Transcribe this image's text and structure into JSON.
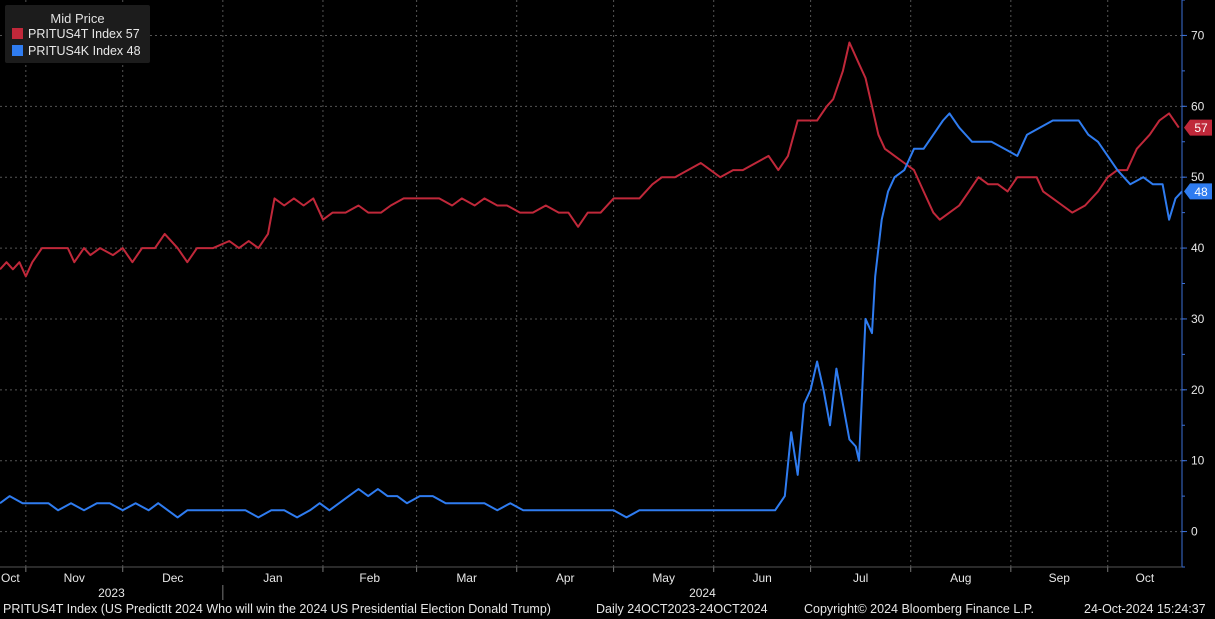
{
  "legend": {
    "title": "Mid Price",
    "items": [
      {
        "label": "PRITUS4T Index",
        "value": "57",
        "color": "#c0283a"
      },
      {
        "label": "PRITUS4K Index",
        "value": "48",
        "color": "#2f7cf0"
      }
    ]
  },
  "footer": {
    "security": "PRITUS4T Index (US PredictIt 2024 Who will win the 2024 US Presidential Election Donald Trump)",
    "period": "Daily 24OCT2023-24OCT2024",
    "copyright": "Copyright© 2024 Bloomberg Finance L.P.",
    "timestamp": "24-Oct-2024 15:24:37"
  },
  "colors": {
    "background": "#000000",
    "grid": "#555555",
    "axis": "#3b6fd6",
    "text": "#e6e6e6"
  },
  "chart_data": {
    "type": "line",
    "title": "",
    "x_range": [
      "2023-10-24",
      "2024-10-24"
    ],
    "month_labels": [
      "Oct",
      "Nov",
      "Dec",
      "Jan",
      "Feb",
      "Mar",
      "Apr",
      "May",
      "Jun",
      "Jul",
      "Aug",
      "Sep",
      "Oct"
    ],
    "year_labels": [
      "2023",
      "2024"
    ],
    "ylim": [
      -5,
      75
    ],
    "y_ticks": [
      0,
      10,
      20,
      30,
      40,
      50,
      60,
      70
    ],
    "y_axis_side": "right",
    "grid": true,
    "legend_position": "top-left",
    "series": [
      {
        "name": "PRITUS4T Index",
        "color": "#c0283a",
        "last_value": 57,
        "points": [
          [
            "2023-10-24",
            37
          ],
          [
            "2023-10-26",
            38
          ],
          [
            "2023-10-28",
            37
          ],
          [
            "2023-10-30",
            38
          ],
          [
            "2023-11-01",
            36
          ],
          [
            "2023-11-03",
            38
          ],
          [
            "2023-11-06",
            40
          ],
          [
            "2023-11-10",
            40
          ],
          [
            "2023-11-14",
            40
          ],
          [
            "2023-11-16",
            38
          ],
          [
            "2023-11-19",
            40
          ],
          [
            "2023-11-21",
            39
          ],
          [
            "2023-11-24",
            40
          ],
          [
            "2023-11-28",
            39
          ],
          [
            "2023-12-01",
            40
          ],
          [
            "2023-12-04",
            38
          ],
          [
            "2023-12-07",
            40
          ],
          [
            "2023-12-11",
            40
          ],
          [
            "2023-12-14",
            42
          ],
          [
            "2023-12-18",
            40
          ],
          [
            "2023-12-21",
            38
          ],
          [
            "2023-12-24",
            40
          ],
          [
            "2023-12-29",
            40
          ],
          [
            "2024-01-03",
            41
          ],
          [
            "2024-01-06",
            40
          ],
          [
            "2024-01-09",
            41
          ],
          [
            "2024-01-12",
            40
          ],
          [
            "2024-01-15",
            42
          ],
          [
            "2024-01-17",
            47
          ],
          [
            "2024-01-20",
            46
          ],
          [
            "2024-01-23",
            47
          ],
          [
            "2024-01-26",
            46
          ],
          [
            "2024-01-29",
            47
          ],
          [
            "2024-02-01",
            44
          ],
          [
            "2024-02-04",
            45
          ],
          [
            "2024-02-08",
            45
          ],
          [
            "2024-02-12",
            46
          ],
          [
            "2024-02-15",
            45
          ],
          [
            "2024-02-19",
            45
          ],
          [
            "2024-02-22",
            46
          ],
          [
            "2024-02-26",
            47
          ],
          [
            "2024-03-01",
            47
          ],
          [
            "2024-03-05",
            47
          ],
          [
            "2024-03-08",
            47
          ],
          [
            "2024-03-12",
            46
          ],
          [
            "2024-03-15",
            47
          ],
          [
            "2024-03-19",
            46
          ],
          [
            "2024-03-22",
            47
          ],
          [
            "2024-03-26",
            46
          ],
          [
            "2024-03-29",
            46
          ],
          [
            "2024-04-02",
            45
          ],
          [
            "2024-04-06",
            45
          ],
          [
            "2024-04-10",
            46
          ],
          [
            "2024-04-14",
            45
          ],
          [
            "2024-04-17",
            45
          ],
          [
            "2024-04-20",
            43
          ],
          [
            "2024-04-23",
            45
          ],
          [
            "2024-04-27",
            45
          ],
          [
            "2024-05-01",
            47
          ],
          [
            "2024-05-05",
            47
          ],
          [
            "2024-05-09",
            47
          ],
          [
            "2024-05-13",
            49
          ],
          [
            "2024-05-16",
            50
          ],
          [
            "2024-05-20",
            50
          ],
          [
            "2024-05-24",
            51
          ],
          [
            "2024-05-28",
            52
          ],
          [
            "2024-05-31",
            51
          ],
          [
            "2024-06-03",
            50
          ],
          [
            "2024-06-07",
            51
          ],
          [
            "2024-06-10",
            51
          ],
          [
            "2024-06-14",
            52
          ],
          [
            "2024-06-18",
            53
          ],
          [
            "2024-06-21",
            51
          ],
          [
            "2024-06-24",
            53
          ],
          [
            "2024-06-27",
            58
          ],
          [
            "2024-06-30",
            58
          ],
          [
            "2024-07-03",
            58
          ],
          [
            "2024-07-06",
            60
          ],
          [
            "2024-07-08",
            61
          ],
          [
            "2024-07-11",
            65
          ],
          [
            "2024-07-13",
            69
          ],
          [
            "2024-07-16",
            66
          ],
          [
            "2024-07-18",
            64
          ],
          [
            "2024-07-20",
            60
          ],
          [
            "2024-07-22",
            56
          ],
          [
            "2024-07-24",
            54
          ],
          [
            "2024-07-27",
            53
          ],
          [
            "2024-07-30",
            52
          ],
          [
            "2024-08-02",
            51
          ],
          [
            "2024-08-05",
            48
          ],
          [
            "2024-08-08",
            45
          ],
          [
            "2024-08-10",
            44
          ],
          [
            "2024-08-13",
            45
          ],
          [
            "2024-08-16",
            46
          ],
          [
            "2024-08-19",
            48
          ],
          [
            "2024-08-22",
            50
          ],
          [
            "2024-08-25",
            49
          ],
          [
            "2024-08-28",
            49
          ],
          [
            "2024-08-31",
            48
          ],
          [
            "2024-09-03",
            50
          ],
          [
            "2024-09-06",
            50
          ],
          [
            "2024-09-09",
            50
          ],
          [
            "2024-09-11",
            48
          ],
          [
            "2024-09-14",
            47
          ],
          [
            "2024-09-17",
            46
          ],
          [
            "2024-09-20",
            45
          ],
          [
            "2024-09-24",
            46
          ],
          [
            "2024-09-28",
            48
          ],
          [
            "2024-10-01",
            50
          ],
          [
            "2024-10-04",
            51
          ],
          [
            "2024-10-07",
            51
          ],
          [
            "2024-10-10",
            54
          ],
          [
            "2024-10-14",
            56
          ],
          [
            "2024-10-17",
            58
          ],
          [
            "2024-10-20",
            59
          ],
          [
            "2024-10-23",
            57
          ]
        ]
      },
      {
        "name": "PRITUS4K Index",
        "color": "#2f7cf0",
        "last_value": 48,
        "points": [
          [
            "2023-10-24",
            4
          ],
          [
            "2023-10-27",
            5
          ],
          [
            "2023-10-31",
            4
          ],
          [
            "2023-11-04",
            4
          ],
          [
            "2023-11-08",
            4
          ],
          [
            "2023-11-11",
            3
          ],
          [
            "2023-11-15",
            4
          ],
          [
            "2023-11-19",
            3
          ],
          [
            "2023-11-23",
            4
          ],
          [
            "2023-11-27",
            4
          ],
          [
            "2023-12-01",
            3
          ],
          [
            "2023-12-05",
            4
          ],
          [
            "2023-12-09",
            3
          ],
          [
            "2023-12-12",
            4
          ],
          [
            "2023-12-15",
            3
          ],
          [
            "2023-12-18",
            2
          ],
          [
            "2023-12-21",
            3
          ],
          [
            "2023-12-26",
            3
          ],
          [
            "2023-12-30",
            3
          ],
          [
            "2024-01-04",
            3
          ],
          [
            "2024-01-08",
            3
          ],
          [
            "2024-01-12",
            2
          ],
          [
            "2024-01-16",
            3
          ],
          [
            "2024-01-20",
            3
          ],
          [
            "2024-01-24",
            2
          ],
          [
            "2024-01-28",
            3
          ],
          [
            "2024-01-31",
            4
          ],
          [
            "2024-02-03",
            3
          ],
          [
            "2024-02-06",
            4
          ],
          [
            "2024-02-09",
            5
          ],
          [
            "2024-02-12",
            6
          ],
          [
            "2024-02-15",
            5
          ],
          [
            "2024-02-18",
            6
          ],
          [
            "2024-02-21",
            5
          ],
          [
            "2024-02-24",
            5
          ],
          [
            "2024-02-27",
            4
          ],
          [
            "2024-03-02",
            5
          ],
          [
            "2024-03-06",
            5
          ],
          [
            "2024-03-10",
            4
          ],
          [
            "2024-03-14",
            4
          ],
          [
            "2024-03-18",
            4
          ],
          [
            "2024-03-22",
            4
          ],
          [
            "2024-03-26",
            3
          ],
          [
            "2024-03-30",
            4
          ],
          [
            "2024-04-03",
            3
          ],
          [
            "2024-04-08",
            3
          ],
          [
            "2024-04-14",
            3
          ],
          [
            "2024-04-20",
            3
          ],
          [
            "2024-04-26",
            3
          ],
          [
            "2024-05-01",
            3
          ],
          [
            "2024-05-05",
            2
          ],
          [
            "2024-05-09",
            3
          ],
          [
            "2024-05-13",
            3
          ],
          [
            "2024-05-17",
            3
          ],
          [
            "2024-05-21",
            3
          ],
          [
            "2024-05-26",
            3
          ],
          [
            "2024-05-31",
            3
          ],
          [
            "2024-06-04",
            3
          ],
          [
            "2024-06-08",
            3
          ],
          [
            "2024-06-12",
            3
          ],
          [
            "2024-06-16",
            3
          ],
          [
            "2024-06-20",
            3
          ],
          [
            "2024-06-23",
            5
          ],
          [
            "2024-06-25",
            14
          ],
          [
            "2024-06-27",
            8
          ],
          [
            "2024-06-29",
            18
          ],
          [
            "2024-07-01",
            20
          ],
          [
            "2024-07-03",
            24
          ],
          [
            "2024-07-05",
            20
          ],
          [
            "2024-07-07",
            15
          ],
          [
            "2024-07-09",
            23
          ],
          [
            "2024-07-11",
            18
          ],
          [
            "2024-07-13",
            13
          ],
          [
            "2024-07-15",
            12
          ],
          [
            "2024-07-16",
            10
          ],
          [
            "2024-07-18",
            30
          ],
          [
            "2024-07-20",
            28
          ],
          [
            "2024-07-21",
            36
          ],
          [
            "2024-07-23",
            44
          ],
          [
            "2024-07-25",
            48
          ],
          [
            "2024-07-27",
            50
          ],
          [
            "2024-07-30",
            51
          ],
          [
            "2024-08-02",
            54
          ],
          [
            "2024-08-05",
            54
          ],
          [
            "2024-08-08",
            56
          ],
          [
            "2024-08-11",
            58
          ],
          [
            "2024-08-13",
            59
          ],
          [
            "2024-08-16",
            57
          ],
          [
            "2024-08-20",
            55
          ],
          [
            "2024-08-23",
            55
          ],
          [
            "2024-08-26",
            55
          ],
          [
            "2024-08-30",
            54
          ],
          [
            "2024-09-03",
            53
          ],
          [
            "2024-09-06",
            56
          ],
          [
            "2024-09-10",
            57
          ],
          [
            "2024-09-14",
            58
          ],
          [
            "2024-09-18",
            58
          ],
          [
            "2024-09-22",
            58
          ],
          [
            "2024-09-25",
            56
          ],
          [
            "2024-09-28",
            55
          ],
          [
            "2024-10-01",
            53
          ],
          [
            "2024-10-04",
            51
          ],
          [
            "2024-10-08",
            49
          ],
          [
            "2024-10-12",
            50
          ],
          [
            "2024-10-15",
            49
          ],
          [
            "2024-10-18",
            49
          ],
          [
            "2024-10-20",
            44
          ],
          [
            "2024-10-22",
            47
          ],
          [
            "2024-10-24",
            48
          ]
        ]
      }
    ]
  }
}
